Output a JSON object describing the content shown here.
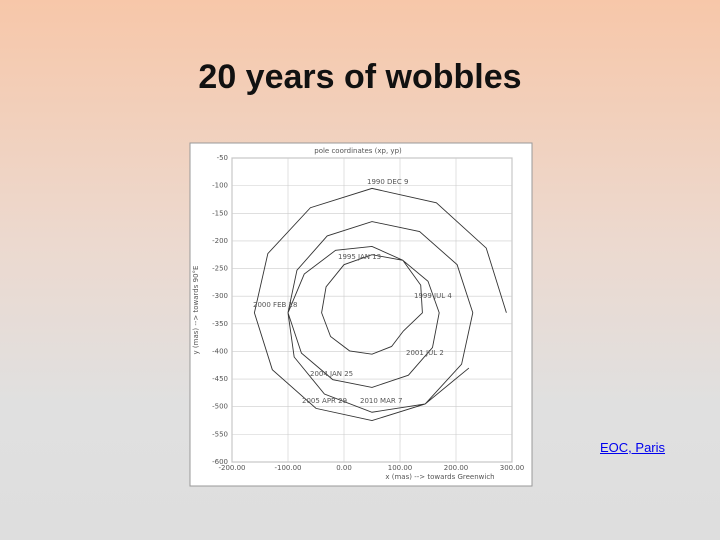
{
  "slide": {
    "title": "20 years of wobbles",
    "link": "EOC, Paris"
  },
  "chart_data": {
    "type": "line",
    "title": "pole coordinates (xp, yp)",
    "x_label": "x (mas) --> towards Greenwich",
    "y_label": "y (mas) --> towards 90°E",
    "xlim": [
      -200,
      300
    ],
    "xticks": [
      {
        "value": -200,
        "label": "-200.00"
      },
      {
        "value": -100,
        "label": "-100.00"
      },
      {
        "value": 0,
        "label": "0.00"
      },
      {
        "value": 100,
        "label": "100.00"
      },
      {
        "value": 200,
        "label": "200.00"
      },
      {
        "value": 300,
        "label": "300.00"
      }
    ],
    "ylim": [
      -600,
      -50
    ],
    "yticks": [
      -600,
      -550,
      -500,
      -450,
      -400,
      -350,
      -300,
      -250,
      -200,
      -150,
      -100,
      -50
    ],
    "grid": true,
    "color": "#333333",
    "x": [
      290,
      254,
      165,
      50,
      -60,
      -136,
      -160,
      -128,
      -50,
      50,
      145,
      210,
      230,
      202,
      135,
      50,
      -30,
      -84,
      -100,
      -76,
      -20,
      50,
      115,
      158,
      170,
      150,
      105,
      50,
      0,
      -32,
      -40,
      -24,
      10,
      50,
      85,
      106,
      140,
      137,
      105,
      50,
      -15,
      -71,
      -100,
      -89,
      -35,
      50,
      145,
      223
    ],
    "y": [
      -330,
      -213,
      -131,
      -105,
      -140,
      -223,
      -330,
      -433,
      -503,
      -525,
      -495,
      -423,
      -330,
      -243,
      -183,
      -165,
      -191,
      -253,
      -330,
      -403,
      -451,
      -465,
      -443,
      -393,
      -330,
      -273,
      -235,
      -225,
      -243,
      -283,
      -330,
      -373,
      -399,
      -405,
      -391,
      -363,
      -330,
      -280,
      -235,
      -210,
      -217,
      -260,
      -330,
      -410,
      -477,
      -510,
      -495,
      -430
    ],
    "annotations": [
      "1990 DEC 9",
      "1995 JAN 13",
      "2000 FEB 18",
      "1999 JUL 4",
      "2001 JUL 2",
      "2004 JAN 25",
      "2005 APR 29",
      "2010 MAR 7"
    ]
  }
}
